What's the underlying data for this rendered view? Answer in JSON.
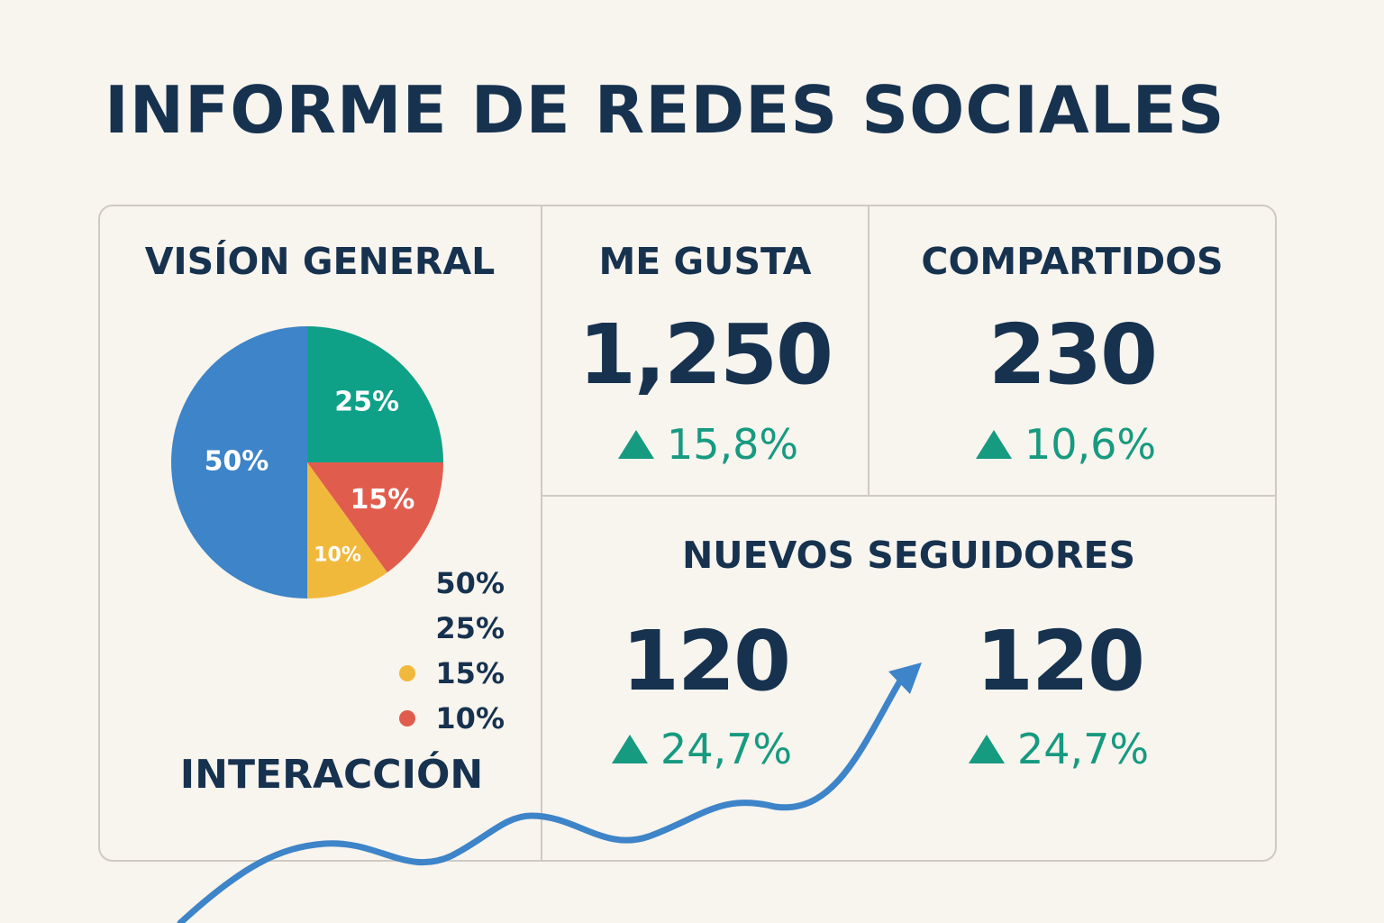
{
  "title": "INFORME DE REDES SOCIALES",
  "colors": {
    "navy": "#16324f",
    "accent_green": "#169a80",
    "blue": "#3d84c8",
    "green": "#0fa088",
    "red": "#e05d4d",
    "yellow": "#f1b93c",
    "background": "#f8f4ee"
  },
  "overview": {
    "title": "VISÍON GENERAL",
    "footer": "INTERACCIÓN",
    "legend": [
      {
        "label": "50%",
        "color": "",
        "icon": ""
      },
      {
        "label": "25%",
        "color": "",
        "icon": ""
      },
      {
        "label": "15%",
        "color": "#f1b93c",
        "icon": "yellow-dot"
      },
      {
        "label": "10%",
        "color": "#e05d4d",
        "icon": "red-dot"
      }
    ]
  },
  "likes": {
    "title": "ME GUSTA",
    "value": "1,250",
    "change": "15,8%",
    "icon": "up-triangle"
  },
  "shares": {
    "title": "COMPARTIDOS",
    "value": "230",
    "change": "10,6%",
    "icon": "up-triangle"
  },
  "followers": {
    "title": "NUEVOS SEGUIDORES",
    "items": [
      {
        "value": "120",
        "change": "24,7%"
      },
      {
        "value": "120",
        "change": "24,7%"
      }
    ],
    "trend_icon": "trend-arrow"
  },
  "chart_data": {
    "type": "pie",
    "title": "VISÍON GENERAL",
    "slices": [
      {
        "label": "50%",
        "value": 50,
        "color": "#3d84c8"
      },
      {
        "label": "25%",
        "value": 25,
        "color": "#0fa088"
      },
      {
        "label": "15%",
        "value": 15,
        "color": "#e05d4d"
      },
      {
        "label": "10%",
        "value": 10,
        "color": "#f1b93c"
      }
    ]
  }
}
